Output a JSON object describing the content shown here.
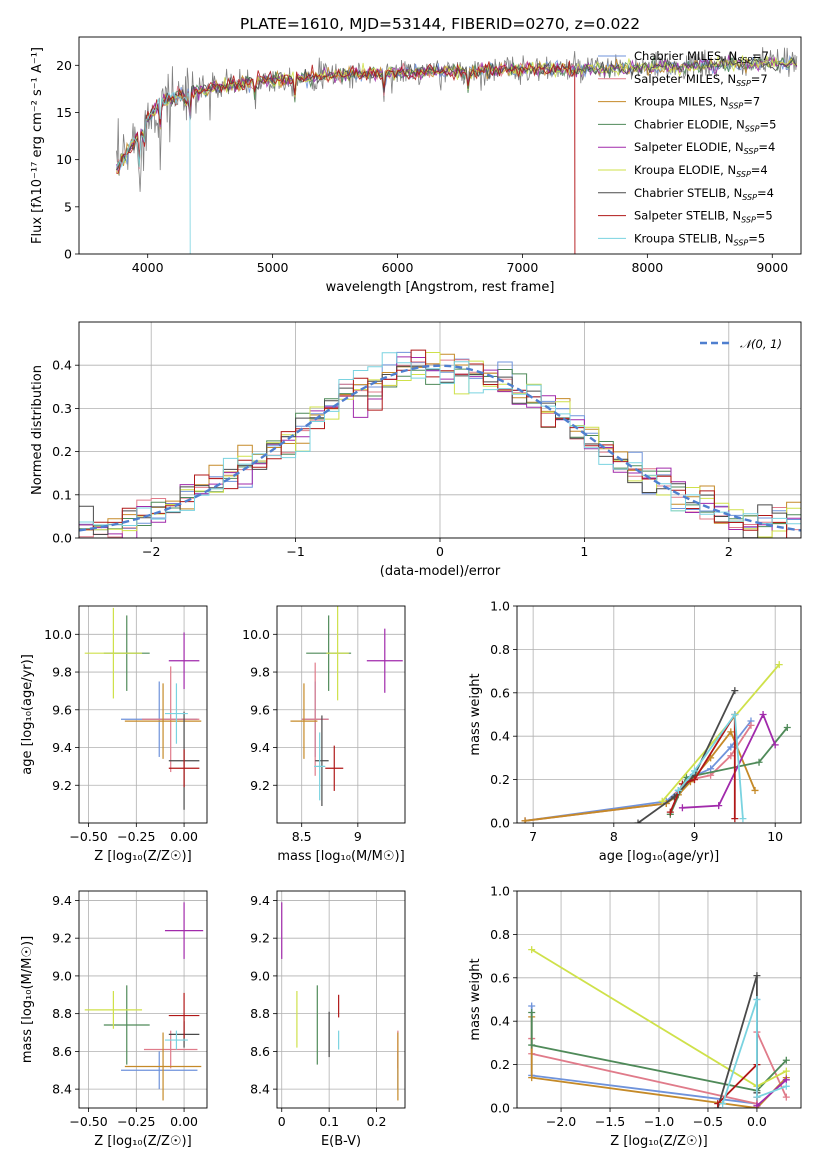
{
  "title": "PLATE=1610, MJD=53144, FIBERID=0270, z=0.022",
  "series_colors": [
    "#6f93db",
    "#e07b8a",
    "#c58a28",
    "#4f8a59",
    "#a12aab",
    "#cfe14a",
    "#4a4a4a",
    "#b01818",
    "#7ad3e0"
  ],
  "legend": [
    {
      "name": "Chabrier MILES",
      "n": "7"
    },
    {
      "name": "Salpeter MILES",
      "n": "7"
    },
    {
      "name": "Kroupa MILES",
      "n": "7"
    },
    {
      "name": "Chabrier ELODIE",
      "n": "5"
    },
    {
      "name": "Salpeter ELODIE",
      "n": "4"
    },
    {
      "name": "Kroupa ELODIE",
      "n": "4"
    },
    {
      "name": "Chabrier STELIB",
      "n": "4"
    },
    {
      "name": "Salpeter STELIB",
      "n": "5"
    },
    {
      "name": "Kroupa STELIB",
      "n": "5"
    }
  ],
  "chart_data": [
    {
      "id": "spectrum",
      "type": "line",
      "xlabel": "wavelength [Angstrom, rest frame]",
      "ylabel": "Flux [fλ10⁻¹⁷ erg cm⁻² s⁻¹ A⁻¹]",
      "xlim": [
        3450,
        9230
      ],
      "ylim": [
        0,
        23
      ],
      "xticks": [
        4000,
        5000,
        6000,
        7000,
        8000,
        9000
      ],
      "yticks": [
        0,
        5,
        10,
        15,
        20
      ],
      "observed": {
        "x_range": [
          3750,
          9200
        ],
        "color": "#808080"
      },
      "continuum": [
        [
          3750,
          9
        ],
        [
          3850,
          11
        ],
        [
          3950,
          13.5
        ],
        [
          4100,
          16
        ],
        [
          4300,
          17
        ],
        [
          4600,
          17.8
        ],
        [
          5000,
          18.5
        ],
        [
          5500,
          19
        ],
        [
          6000,
          19.2
        ],
        [
          6500,
          19.4
        ],
        [
          7000,
          19.6
        ],
        [
          7500,
          19.6
        ],
        [
          8000,
          19.7
        ],
        [
          8500,
          20
        ],
        [
          9200,
          20.3
        ]
      ],
      "absorption_dips": [
        [
          3934,
          4.5
        ],
        [
          3969,
          3.5
        ],
        [
          4102,
          2.5
        ],
        [
          4304,
          2
        ],
        [
          4340,
          2.5
        ],
        [
          4861,
          2
        ],
        [
          5175,
          2.5
        ],
        [
          5890,
          2.5
        ],
        [
          6563,
          2
        ]
      ],
      "model_end": [
        9200,
        7420,
        9200,
        9200,
        9200,
        9200,
        9200,
        7420,
        4340
      ]
    },
    {
      "id": "residual",
      "type": "step",
      "xlabel": "(data-model)/error",
      "ylabel": "Normed distribution",
      "xlim": [
        -2.5,
        2.5
      ],
      "ylim": [
        0,
        0.5
      ],
      "xticks": [
        -2,
        -1,
        0,
        1,
        2
      ],
      "xtick_labels": [
        "−2",
        "−1",
        "0",
        "1",
        "2"
      ],
      "yticks": [
        0,
        0.1,
        0.2,
        0.3,
        0.4
      ],
      "gaussian_label": "𝒩(0, 1)",
      "gaussian_color": "#4f7fcf",
      "bin_width": 0.1
    },
    {
      "id": "age-vs-Z",
      "type": "errorbar",
      "xlabel": "Z [log₁₀(Z/Z☉)]",
      "ylabel": "age  [log₁₀(age/yr)]",
      "xlim": [
        -0.55,
        0.12
      ],
      "ylim": [
        9.0,
        10.15
      ],
      "xticks": [
        -0.5,
        -0.25,
        0.0
      ],
      "xtick_labels": [
        "−0.50",
        "−0.25",
        "0.00"
      ],
      "yticks": [
        9.2,
        9.4,
        9.6,
        9.8,
        10.0
      ],
      "points": [
        {
          "s": 0,
          "x": -0.13,
          "y": 9.55,
          "ex": 0.2,
          "ey": 0.2
        },
        {
          "s": 1,
          "x": -0.07,
          "y": 9.55,
          "ex": 0.15,
          "ey": 0.28
        },
        {
          "s": 2,
          "x": -0.11,
          "y": 9.54,
          "ex": 0.2,
          "ey": 0.2
        },
        {
          "s": 3,
          "x": -0.3,
          "y": 9.9,
          "ex": 0.12,
          "ey": 0.2
        },
        {
          "s": 4,
          "x": 0.0,
          "y": 9.86,
          "ex": 0.08,
          "ey": 0.15
        },
        {
          "s": 5,
          "x": -0.37,
          "y": 9.9,
          "ex": 0.15,
          "ey": 0.24
        },
        {
          "s": 6,
          "x": 0.0,
          "y": 9.33,
          "ex": 0.08,
          "ey": 0.26
        },
        {
          "s": 7,
          "x": 0.0,
          "y": 9.29,
          "ex": 0.08,
          "ey": 0.1
        },
        {
          "s": 8,
          "x": -0.04,
          "y": 9.58,
          "ex": 0.06,
          "ey": 0.16
        }
      ]
    },
    {
      "id": "age-vs-mass",
      "type": "errorbar",
      "xlabel": "mass [log₁₀(M/M☉)]",
      "ylabel": "",
      "xlim": [
        8.28,
        9.42
      ],
      "ylim": [
        9.0,
        10.15
      ],
      "xticks": [
        8.5,
        9.0
      ],
      "yticks": [
        9.2,
        9.4,
        9.6,
        9.8,
        10.0
      ],
      "points": [
        {
          "s": 0,
          "x": 8.62,
          "y": 9.55,
          "ex": 0.12,
          "ey": 0.2
        },
        {
          "s": 1,
          "x": 8.62,
          "y": 9.55,
          "ex": 0.12,
          "ey": 0.3
        },
        {
          "s": 2,
          "x": 8.52,
          "y": 9.54,
          "ex": 0.12,
          "ey": 0.2
        },
        {
          "s": 3,
          "x": 8.74,
          "y": 9.9,
          "ex": 0.2,
          "ey": 0.2
        },
        {
          "s": 4,
          "x": 9.24,
          "y": 9.86,
          "ex": 0.16,
          "ey": 0.17
        },
        {
          "s": 5,
          "x": 8.82,
          "y": 9.9,
          "ex": 0.1,
          "ey": 0.25
        },
        {
          "s": 6,
          "x": 8.68,
          "y": 9.33,
          "ex": 0.06,
          "ey": 0.24
        },
        {
          "s": 7,
          "x": 8.79,
          "y": 9.29,
          "ex": 0.08,
          "ey": 0.12
        },
        {
          "s": 8,
          "x": 8.66,
          "y": 9.3,
          "ex": 0.05,
          "ey": 0.18
        }
      ]
    },
    {
      "id": "weight-vs-age",
      "type": "line",
      "xlabel": "age  [log₁₀(age/yr)]",
      "ylabel": "mass weight",
      "xlim": [
        6.8,
        10.32
      ],
      "ylim": [
        0,
        1.0
      ],
      "xticks": [
        7,
        8,
        9,
        10
      ],
      "yticks": [
        0.0,
        0.2,
        0.4,
        0.6,
        0.8,
        1.0
      ],
      "series": [
        {
          "s": 0,
          "x": [
            6.9,
            8.65,
            8.8,
            8.95,
            9.2,
            9.45,
            9.7
          ],
          "y": [
            0.01,
            0.1,
            0.15,
            0.21,
            0.25,
            0.35,
            0.47
          ]
        },
        {
          "s": 1,
          "x": [
            6.9,
            8.65,
            8.8,
            8.95,
            9.2,
            9.45,
            9.7
          ],
          "y": [
            0.01,
            0.09,
            0.14,
            0.2,
            0.22,
            0.31,
            0.45
          ]
        },
        {
          "s": 2,
          "x": [
            6.9,
            8.65,
            8.8,
            8.95,
            9.2,
            9.45,
            9.75
          ],
          "y": [
            0.01,
            0.09,
            0.13,
            0.19,
            0.3,
            0.42,
            0.15
          ]
        },
        {
          "s": 3,
          "x": [
            8.7,
            8.9,
            9.8,
            10.15
          ],
          "y": [
            0.04,
            0.21,
            0.28,
            0.44
          ]
        },
        {
          "s": 4,
          "x": [
            8.85,
            9.3,
            9.85,
            10.0
          ],
          "y": [
            0.07,
            0.08,
            0.5,
            0.36
          ]
        },
        {
          "s": 5,
          "x": [
            8.6,
            10.05
          ],
          "y": [
            0.1,
            0.73
          ]
        },
        {
          "s": 6,
          "x": [
            8.3,
            8.75,
            9.0,
            9.5
          ],
          "y": [
            0.0,
            0.12,
            0.22,
            0.61
          ]
        },
        {
          "s": 7,
          "x": [
            8.7,
            8.85,
            9.0,
            9.5,
            9.5
          ],
          "y": [
            0.05,
            0.18,
            0.2,
            0.5,
            0.02
          ]
        },
        {
          "s": 8,
          "x": [
            8.8,
            9.0,
            9.5,
            9.6
          ],
          "y": [
            0.15,
            0.24,
            0.5,
            0.02
          ]
        }
      ]
    },
    {
      "id": "mass-vs-Z",
      "type": "errorbar",
      "xlabel": "Z [log₁₀(Z/Z☉)]",
      "ylabel": "mass [log₁₀(M/M☉)]",
      "xlim": [
        -0.55,
        0.12
      ],
      "ylim": [
        8.3,
        9.45
      ],
      "xticks": [
        -0.5,
        -0.25,
        0.0
      ],
      "xtick_labels": [
        "−0.50",
        "−0.25",
        "0.00"
      ],
      "yticks": [
        8.4,
        8.6,
        8.8,
        9.0,
        9.2,
        9.4
      ],
      "points": [
        {
          "s": 0,
          "x": -0.13,
          "y": 8.5,
          "ex": 0.2,
          "ey": 0.1
        },
        {
          "s": 1,
          "x": -0.07,
          "y": 8.61,
          "ex": 0.14,
          "ey": 0.1
        },
        {
          "s": 2,
          "x": -0.11,
          "y": 8.52,
          "ex": 0.2,
          "ey": 0.18
        },
        {
          "s": 3,
          "x": -0.3,
          "y": 8.74,
          "ex": 0.12,
          "ey": 0.21
        },
        {
          "s": 4,
          "x": 0.0,
          "y": 9.24,
          "ex": 0.1,
          "ey": 0.15
        },
        {
          "s": 5,
          "x": -0.37,
          "y": 8.82,
          "ex": 0.15,
          "ey": 0.1
        },
        {
          "s": 6,
          "x": 0.0,
          "y": 8.69,
          "ex": 0.08,
          "ey": 0.07
        },
        {
          "s": 7,
          "x": 0.0,
          "y": 8.79,
          "ex": 0.08,
          "ey": 0.12
        },
        {
          "s": 8,
          "x": -0.04,
          "y": 8.66,
          "ex": 0.06,
          "ey": 0.05
        }
      ]
    },
    {
      "id": "mass-vs-ebv",
      "type": "errorbar",
      "xlabel": "E(B-V)",
      "ylabel": "",
      "xlim": [
        -0.01,
        0.26
      ],
      "ylim": [
        8.3,
        9.45
      ],
      "xticks": [
        0.0,
        0.1,
        0.2
      ],
      "yticks": [
        8.4,
        8.6,
        8.8,
        9.0,
        9.2,
        9.4
      ],
      "points": [
        {
          "s": 0,
          "x": 0.245,
          "y": 8.5,
          "ex": 0,
          "ey": 0.1
        },
        {
          "s": 1,
          "x": 0.245,
          "y": 8.61,
          "ex": 0,
          "ey": 0.1
        },
        {
          "s": 2,
          "x": 0.245,
          "y": 8.52,
          "ex": 0,
          "ey": 0.18
        },
        {
          "s": 3,
          "x": 0.075,
          "y": 8.74,
          "ex": 0,
          "ey": 0.21
        },
        {
          "s": 4,
          "x": 0.0,
          "y": 9.24,
          "ex": 0,
          "ey": 0.15
        },
        {
          "s": 5,
          "x": 0.032,
          "y": 8.77,
          "ex": 0,
          "ey": 0.15
        },
        {
          "s": 6,
          "x": 0.1,
          "y": 8.69,
          "ex": 0,
          "ey": 0.12
        },
        {
          "s": 7,
          "x": 0.12,
          "y": 8.84,
          "ex": 0,
          "ey": 0.06
        },
        {
          "s": 8,
          "x": 0.12,
          "y": 8.66,
          "ex": 0,
          "ey": 0.05
        }
      ]
    },
    {
      "id": "weight-vs-Z",
      "type": "line",
      "xlabel": "Z [log₁₀(Z/Z☉)]",
      "ylabel": "mass weight",
      "xlim": [
        -2.45,
        0.45
      ],
      "ylim": [
        0,
        1.0
      ],
      "xticks": [
        -2.0,
        -1.5,
        -1.0,
        -0.5,
        0.0
      ],
      "xtick_labels": [
        "−2.0",
        "−1.5",
        "−1.0",
        "−0.5",
        "0.0"
      ],
      "yticks": [
        0.0,
        0.2,
        0.4,
        0.6,
        0.8,
        1.0
      ],
      "series": [
        {
          "s": 0,
          "x": [
            -2.3,
            -2.3,
            0.0,
            0.0
          ],
          "y": [
            0.47,
            0.15,
            0.02,
            0.5
          ]
        },
        {
          "s": 1,
          "x": [
            -2.3,
            -2.3,
            0.0,
            0.0,
            0.3
          ],
          "y": [
            0.32,
            0.25,
            0.02,
            0.35,
            0.05
          ]
        },
        {
          "s": 2,
          "x": [
            -2.3,
            -2.3,
            0.0,
            0.3
          ],
          "y": [
            0.42,
            0.14,
            0.0,
            0.14
          ]
        },
        {
          "s": 3,
          "x": [
            -2.3,
            -2.3,
            0.0,
            0.3
          ],
          "y": [
            0.44,
            0.29,
            0.08,
            0.22
          ]
        },
        {
          "s": 4,
          "x": [
            0.0,
            0.3
          ],
          "y": [
            0.01,
            0.13
          ]
        },
        {
          "s": 5,
          "x": [
            -2.3,
            0.0,
            0.3
          ],
          "y": [
            0.73,
            0.1,
            0.17
          ]
        },
        {
          "s": 6,
          "x": [
            -0.4,
            0.0,
            0.0
          ],
          "y": [
            0.0,
            0.61,
            0.07
          ]
        },
        {
          "s": 7,
          "x": [
            -0.4,
            0.0,
            0.0
          ],
          "y": [
            0.02,
            0.2,
            0.05
          ]
        },
        {
          "s": 8,
          "x": [
            -0.35,
            0.0,
            0.0,
            0.3
          ],
          "y": [
            0.02,
            0.5,
            0.05,
            0.1
          ]
        }
      ]
    }
  ]
}
